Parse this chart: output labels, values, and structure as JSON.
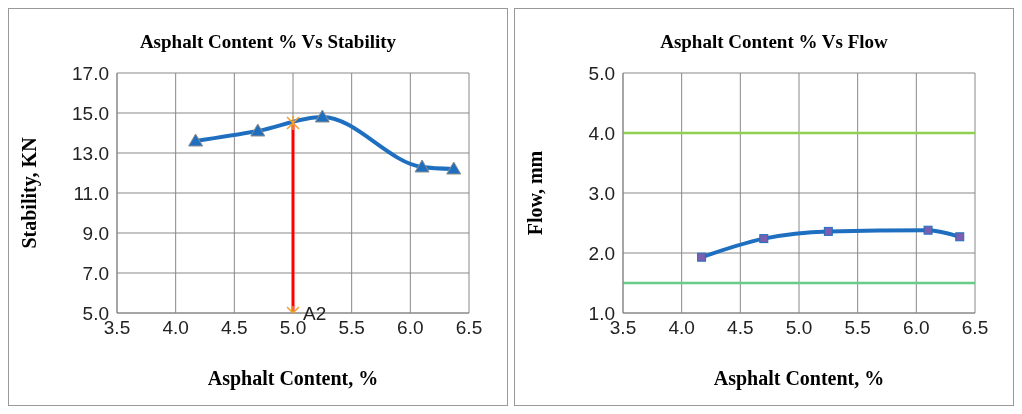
{
  "chart_data": [
    {
      "type": "line",
      "title": "Asphalt Content % Vs Stability",
      "xlabel": "Asphalt Content, %",
      "ylabel": "Stability, KN",
      "x": [
        4.17,
        4.7,
        5.25,
        6.1,
        6.37
      ],
      "series": [
        {
          "color": "#1f6fc0",
          "values": [
            13.6,
            14.1,
            14.8,
            12.3,
            12.2
          ],
          "marker": "triangle"
        },
        {
          "type": "line",
          "color": "#ff0000",
          "x": [
            5,
            5
          ],
          "values": [
            14.5,
            5
          ],
          "marker": "cross"
        }
      ],
      "xlim": [
        3.5,
        6.5
      ],
      "xticks": [
        {
          "value": 3.5,
          "label": "3.5"
        },
        {
          "value": 4,
          "label": "4.0"
        },
        {
          "value": 4.5,
          "label": "4.5"
        },
        {
          "value": 5,
          "label": "5.0"
        },
        {
          "value": 5.5,
          "label": "5.5"
        },
        {
          "value": 6,
          "label": "6.0"
        },
        {
          "value": 6.5,
          "label": "6.5"
        }
      ],
      "ylim": [
        5,
        17
      ],
      "yticks": [
        {
          "value": 5,
          "label": "5.0"
        },
        {
          "value": 7,
          "label": "7.0"
        },
        {
          "value": 9,
          "label": "9.0"
        },
        {
          "value": 11,
          "label": "11.0"
        },
        {
          "value": 13,
          "label": "13.0"
        },
        {
          "value": 15,
          "label": "15.0"
        },
        {
          "value": 17,
          "label": "17.0"
        }
      ],
      "grid": true,
      "annotations": [
        {
          "text": "A2",
          "x": 5,
          "y": 5
        }
      ]
    },
    {
      "type": "line",
      "title": "Asphalt Content % Vs Flow",
      "xlabel": "Asphalt Content, %",
      "ylabel": "Flow, mm",
      "x": [
        4.17,
        4.7,
        5.25,
        6.1,
        6.37
      ],
      "series": [
        {
          "color": "#1f6fc0",
          "values": [
            1.93,
            2.24,
            2.36,
            2.38,
            2.27
          ],
          "marker": "square"
        }
      ],
      "xlim": [
        3.5,
        6.5
      ],
      "xticks": [
        {
          "value": 3.5,
          "label": "3.5"
        },
        {
          "value": 4,
          "label": "4.0"
        },
        {
          "value": 4.5,
          "label": "4.5"
        },
        {
          "value": 5,
          "label": "5.0"
        },
        {
          "value": 5.5,
          "label": "5.5"
        },
        {
          "value": 6,
          "label": "6.0"
        },
        {
          "value": 6.5,
          "label": "6.5"
        }
      ],
      "ylim": [
        1,
        5
      ],
      "yticks": [
        {
          "value": 1,
          "label": "1.0"
        },
        {
          "value": 2,
          "label": "2.0"
        },
        {
          "value": 3,
          "label": "3.0"
        },
        {
          "value": 4,
          "label": "4.0"
        },
        {
          "value": 5,
          "label": "5.0"
        }
      ],
      "grid": true,
      "ref_lines": [
        {
          "axis": "y",
          "value": 4,
          "color": "#92d050"
        },
        {
          "axis": "y",
          "value": 1.5,
          "color": "#66cc88"
        }
      ]
    }
  ]
}
